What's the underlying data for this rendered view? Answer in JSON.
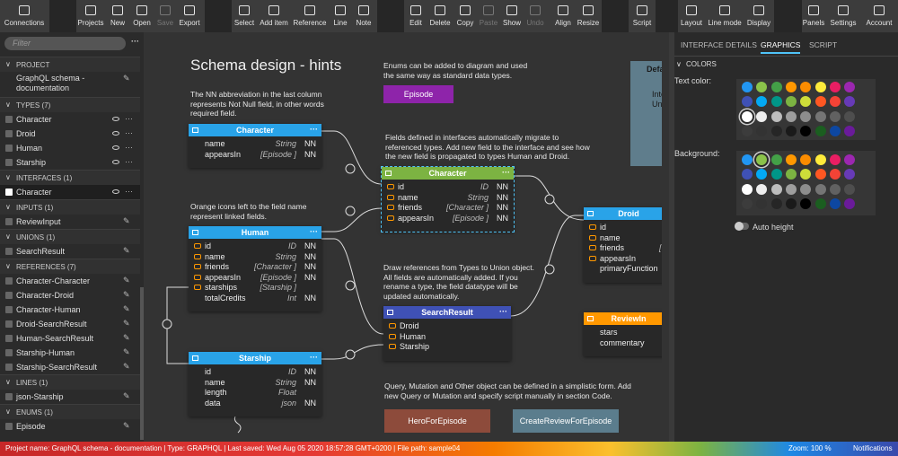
{
  "toolbar": [
    {
      "label": "Connections"
    },
    {
      "label": "Projects"
    },
    {
      "label": "New"
    },
    {
      "label": "Open"
    },
    {
      "label": "Save",
      "disabled": true
    },
    {
      "label": "Export"
    },
    {
      "label": "Select"
    },
    {
      "label": "Add item"
    },
    {
      "label": "Reference"
    },
    {
      "label": "Line"
    },
    {
      "label": "Note"
    },
    {
      "label": "Edit"
    },
    {
      "label": "Delete"
    },
    {
      "label": "Copy"
    },
    {
      "label": "Paste",
      "disabled": true
    },
    {
      "label": "Show"
    },
    {
      "label": "Undo",
      "disabled": true
    },
    {
      "label": "Align"
    },
    {
      "label": "Resize"
    },
    {
      "label": "Script"
    },
    {
      "label": "Layout"
    },
    {
      "label": "Line mode"
    },
    {
      "label": "Display"
    },
    {
      "label": "Panels"
    },
    {
      "label": "Settings"
    },
    {
      "label": "Account"
    }
  ],
  "sidebar": {
    "filter": "Filter",
    "sections": [
      {
        "title": "PROJECT",
        "items": [
          "GraphQL schema - documentation"
        ]
      },
      {
        "title": "TYPES (7)",
        "items": [
          "Character",
          "Droid",
          "Human",
          "Starship"
        ]
      },
      {
        "title": "INTERFACES (1)",
        "items": [
          "Character"
        ]
      },
      {
        "title": "INPUTS (1)",
        "items": [
          "ReviewInput"
        ]
      },
      {
        "title": "UNIONS (1)",
        "items": [
          "SearchResult"
        ]
      },
      {
        "title": "REFERENCES (7)",
        "items": [
          "Character-Character",
          "Character-Droid",
          "Character-Human",
          "Droid-SearchResult",
          "Human-SearchResult",
          "Starship-Human",
          "Starship-SearchResult"
        ]
      },
      {
        "title": "LINES (1)",
        "items": [
          "json-Starship"
        ]
      },
      {
        "title": "ENUMS (1)",
        "items": [
          "Episode"
        ]
      }
    ]
  },
  "canvas": {
    "title": "Schema design - hints",
    "notes": [
      "The NN abbreviation in the last column represents Not Null field, in other words required field.",
      "Orange icons left to the field name represent linked fields.",
      "Enums can be added to diagram and used the same way as standard data types.",
      "Fields defined in interfaces automatically migrate to referenced types. Add new field to the interface and see how the new field is propagated to types Human and Droid.",
      "Draw references from Types to Union object. All fields are automatically added. If you rename a type, the field datatype will be updated automatically.",
      "Query, Mutation and Other object can be defined in a simplistic form. Add new Query or Mutation and specify script manually in section Code."
    ],
    "entities": [
      {
        "title": "Character",
        "fields": [
          {
            "name": "name",
            "type": "String",
            "nn": "NN"
          },
          {
            "name": "appearsIn",
            "type": "[Episode ]",
            "nn": "NN"
          }
        ]
      },
      {
        "title": "Human",
        "fields": [
          {
            "name": "id",
            "type": "ID",
            "nn": "NN",
            "linked": true
          },
          {
            "name": "name",
            "type": "String",
            "nn": "NN",
            "linked": true
          },
          {
            "name": "friends",
            "type": "[Character ]",
            "nn": "NN",
            "linked": true
          },
          {
            "name": "appearsIn",
            "type": "[Episode ]",
            "nn": "NN",
            "linked": true
          },
          {
            "name": "starships",
            "type": "[Starship ]",
            "linked": true
          },
          {
            "name": "totalCredits",
            "type": "Int",
            "nn": "NN"
          }
        ]
      },
      {
        "title": "Starship",
        "fields": [
          {
            "name": "id",
            "type": "ID",
            "nn": "NN"
          },
          {
            "name": "name",
            "type": "String",
            "nn": "NN"
          },
          {
            "name": "length",
            "type": "Float"
          },
          {
            "name": "data",
            "type": "json",
            "nn": "NN"
          }
        ]
      },
      {
        "title": "Character",
        "fields": [
          {
            "name": "id",
            "type": "ID",
            "nn": "NN",
            "linked": true
          },
          {
            "name": "name",
            "type": "String",
            "nn": "NN",
            "linked": true
          },
          {
            "name": "friends",
            "type": "[Character ]",
            "nn": "NN",
            "linked": true
          },
          {
            "name": "appearsIn",
            "type": "[Episode ]",
            "nn": "NN",
            "linked": true
          }
        ]
      },
      {
        "title": "SearchResult",
        "fields": [
          {
            "name": "Droid",
            "linked": true
          },
          {
            "name": "Human",
            "linked": true
          },
          {
            "name": "Starship",
            "linked": true
          }
        ]
      },
      {
        "title": "Droid",
        "fields": [
          {
            "name": "id",
            "linked": true
          },
          {
            "name": "name",
            "linked": true
          },
          {
            "name": "friends",
            "type": "[Cha",
            "linked": true
          },
          {
            "name": "appearsIn",
            "type": "[E",
            "linked": true
          },
          {
            "name": "primaryFunction"
          }
        ]
      },
      {
        "title": "ReviewIn",
        "fields": [
          {
            "name": "stars"
          },
          {
            "name": "commentary"
          }
        ]
      }
    ],
    "enum": "Episode",
    "others": [
      "HeroForEpisode",
      "CreateReviewForEpisode"
    ],
    "partial": {
      "title": "Defa",
      "lines": [
        "Inte",
        "Unio"
      ]
    }
  },
  "panel": {
    "tabs": [
      "INTERFACE DETAILS",
      "GRAPHICS",
      "SCRIPT"
    ],
    "section": "COLORS",
    "text_color": "Text color:",
    "background": "Background:",
    "auto_height": "Auto height"
  },
  "status": {
    "info": "Project name: GraphQL schema - documentation  | Type: GRAPHQL  | Last saved: Wed Aug 05 2020 18:57:28 GMT+0200  | File path: sample04",
    "zoom": "Zoom: 100 %",
    "notifications": "Notifications"
  }
}
